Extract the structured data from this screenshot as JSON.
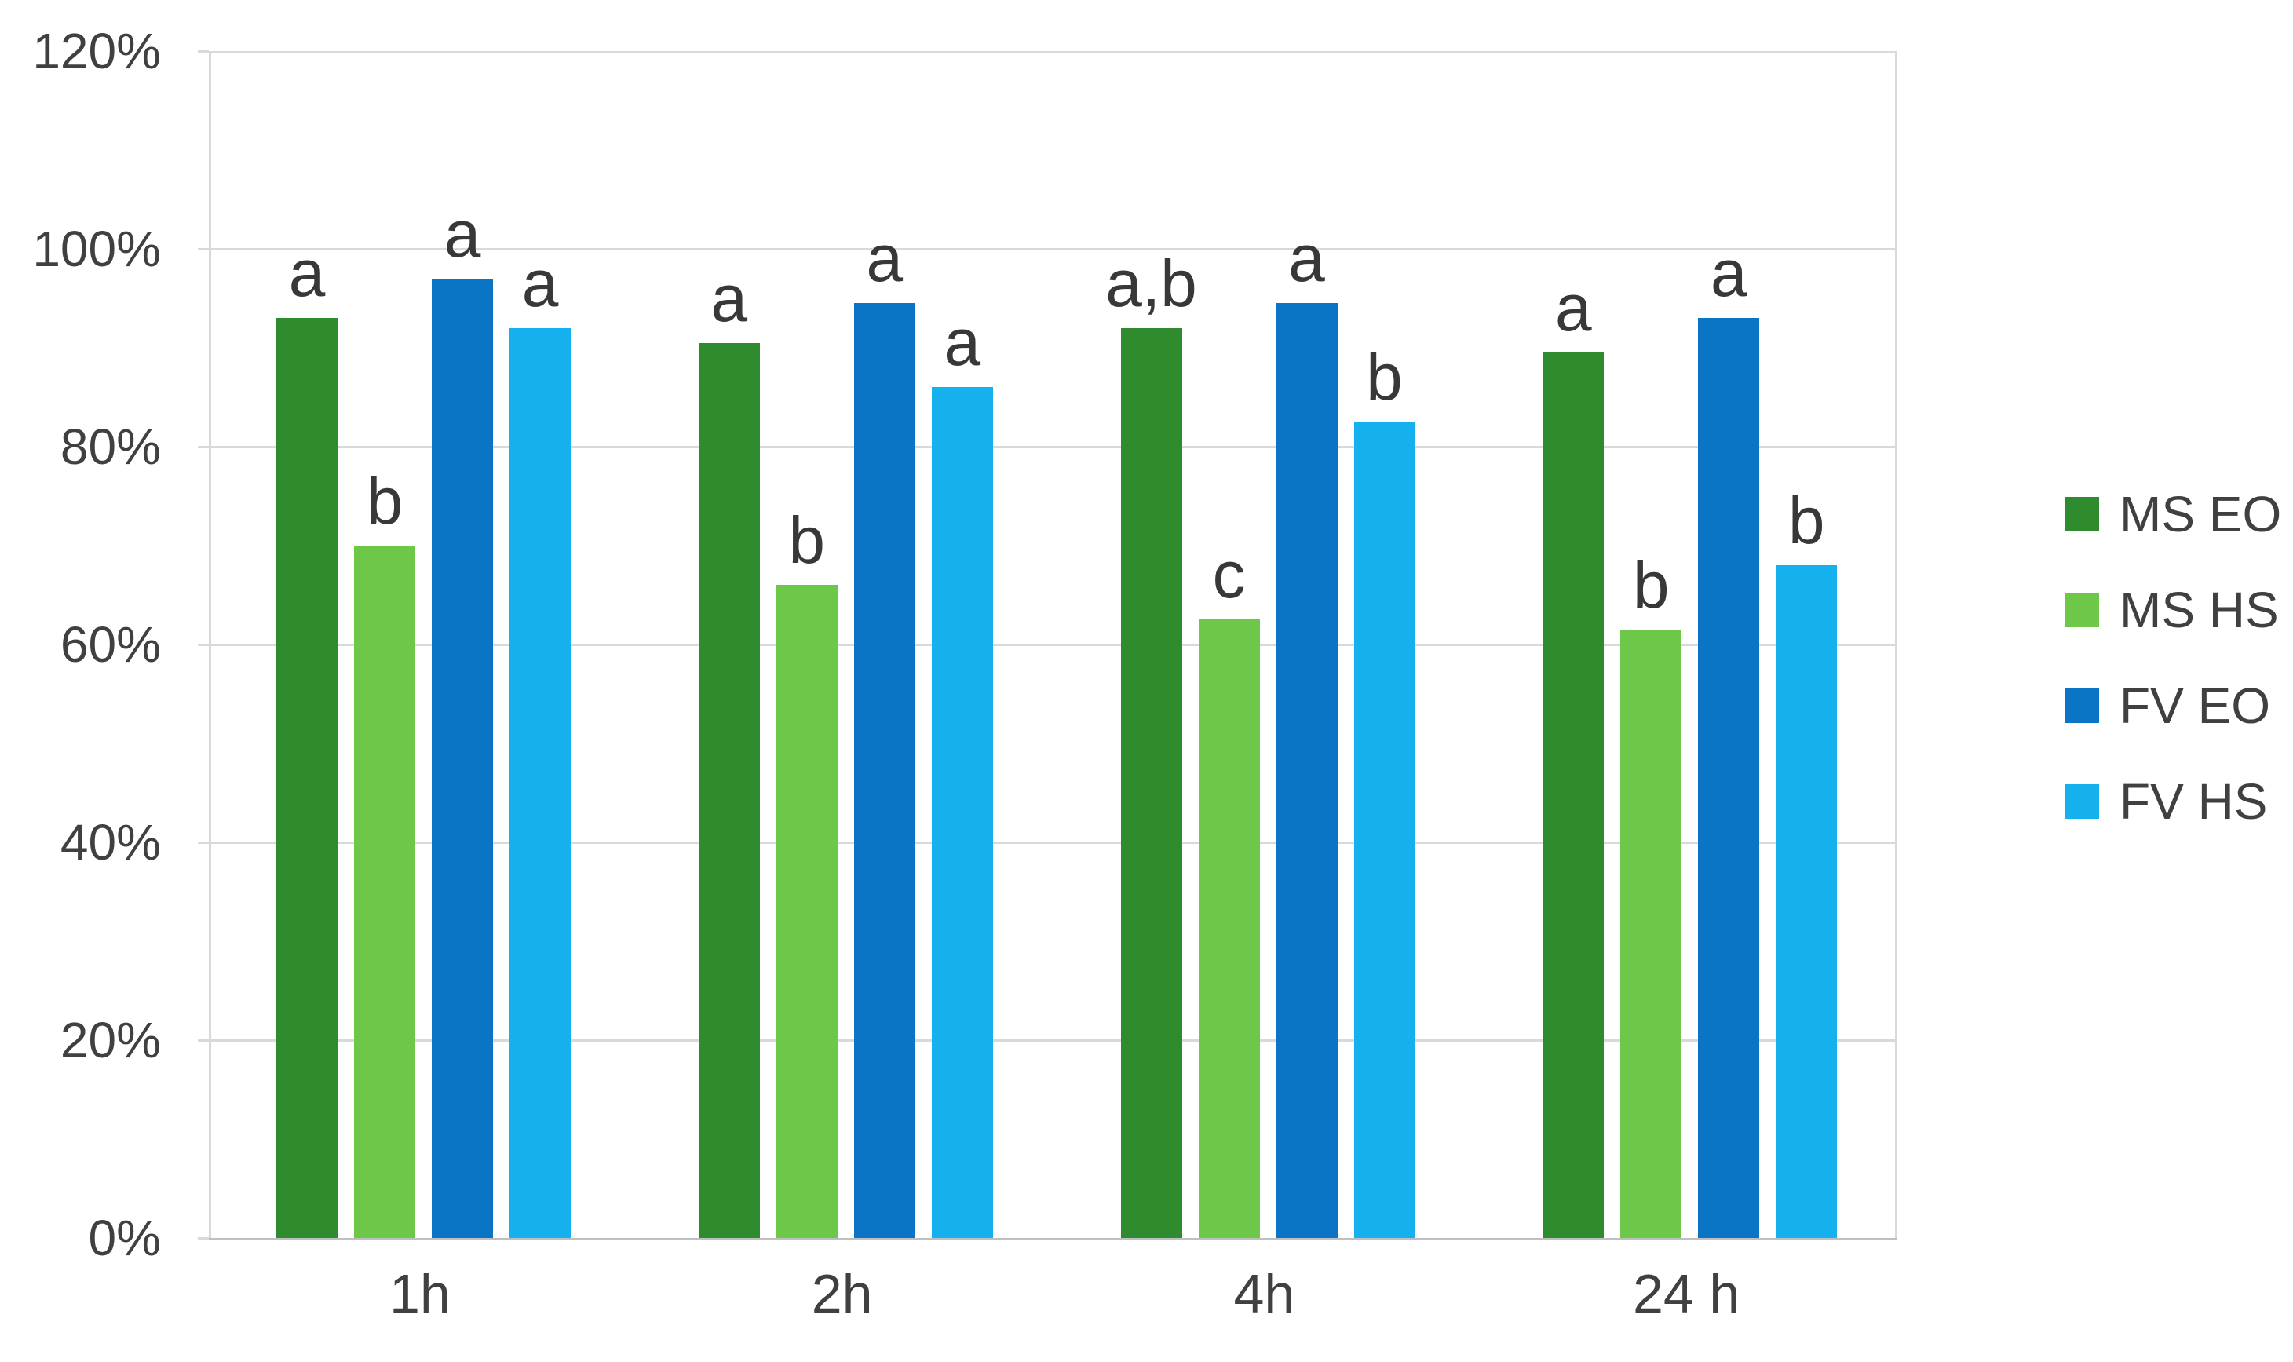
{
  "chart_data": {
    "type": "bar",
    "title": "",
    "xlabel": "",
    "ylabel": "",
    "ylim": [
      0,
      120
    ],
    "ytick_step": 20,
    "ytick_labels": [
      "0%",
      "20%",
      "40%",
      "60%",
      "80%",
      "100%",
      "120%"
    ],
    "grid": true,
    "legend_position": "right",
    "categories": [
      "1h",
      "2h",
      "4h",
      "24 h"
    ],
    "series": [
      {
        "name": "MS EO",
        "color": "#2e8b2e",
        "values": [
          93,
          90.5,
          92,
          89.5
        ],
        "annotations": [
          "a",
          "a",
          "a,b",
          "a"
        ]
      },
      {
        "name": "MS HS",
        "color": "#6dc84a",
        "values": [
          70,
          66,
          62.5,
          61.5
        ],
        "annotations": [
          "b",
          "b",
          "c",
          "b"
        ]
      },
      {
        "name": "FV EO",
        "color": "#0a75c5",
        "values": [
          97,
          94.5,
          94.5,
          93
        ],
        "annotations": [
          "a",
          "a",
          "a",
          "a"
        ]
      },
      {
        "name": "FV HS",
        "color": "#14b1ee",
        "values": [
          92,
          86,
          82.5,
          68
        ],
        "annotations": [
          "a",
          "a",
          "b",
          "b"
        ]
      }
    ],
    "colors": {
      "text": "#404040",
      "gridline": "#d9d9d9",
      "axis_line": "#bfbfbf",
      "background": "#ffffff"
    }
  }
}
